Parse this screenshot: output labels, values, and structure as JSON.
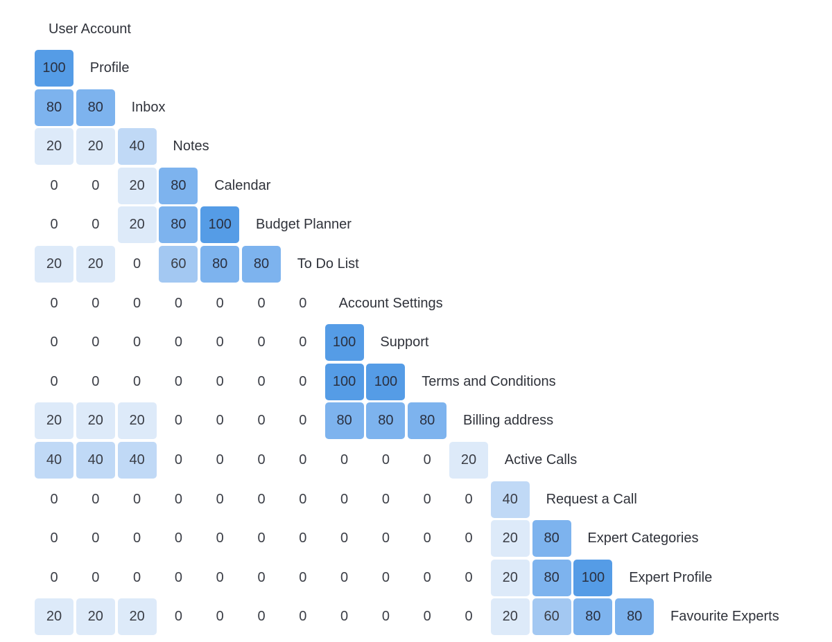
{
  "chart_data": {
    "type": "heatmap",
    "title": "",
    "column_header": "User Account",
    "rows": [
      {
        "label": "Profile",
        "values": [
          100
        ]
      },
      {
        "label": "Inbox",
        "values": [
          80,
          80
        ]
      },
      {
        "label": "Notes",
        "values": [
          20,
          20,
          40
        ]
      },
      {
        "label": "Calendar",
        "values": [
          0,
          0,
          20,
          80
        ]
      },
      {
        "label": "Budget Planner",
        "values": [
          0,
          0,
          20,
          80,
          100
        ]
      },
      {
        "label": "To Do List",
        "values": [
          20,
          20,
          0,
          60,
          80,
          80
        ]
      },
      {
        "label": "Account Settings",
        "values": [
          0,
          0,
          0,
          0,
          0,
          0,
          0
        ]
      },
      {
        "label": "Support",
        "values": [
          0,
          0,
          0,
          0,
          0,
          0,
          0,
          100
        ]
      },
      {
        "label": "Terms and Conditions",
        "values": [
          0,
          0,
          0,
          0,
          0,
          0,
          0,
          100,
          100
        ]
      },
      {
        "label": "Billing address",
        "values": [
          20,
          20,
          20,
          0,
          0,
          0,
          0,
          80,
          80,
          80
        ]
      },
      {
        "label": "Active Calls",
        "values": [
          40,
          40,
          40,
          0,
          0,
          0,
          0,
          0,
          0,
          0,
          20
        ]
      },
      {
        "label": "Request a Call",
        "values": [
          0,
          0,
          0,
          0,
          0,
          0,
          0,
          0,
          0,
          0,
          0,
          40
        ]
      },
      {
        "label": "Expert Categories",
        "values": [
          0,
          0,
          0,
          0,
          0,
          0,
          0,
          0,
          0,
          0,
          0,
          20,
          80
        ]
      },
      {
        "label": "Expert Profile",
        "values": [
          0,
          0,
          0,
          0,
          0,
          0,
          0,
          0,
          0,
          0,
          0,
          20,
          80,
          100
        ]
      },
      {
        "label": "Favourite Experts",
        "values": [
          20,
          20,
          20,
          0,
          0,
          0,
          0,
          0,
          0,
          0,
          0,
          20,
          60,
          80,
          80
        ]
      }
    ],
    "value_range": [
      0,
      100
    ],
    "colors": {
      "20": "#ddeaf9",
      "40": "#c0d9f6",
      "60": "#a3c8f2",
      "80": "#7db3ee",
      "100": "#559ce6"
    },
    "zero_cells_uncolored": true
  }
}
